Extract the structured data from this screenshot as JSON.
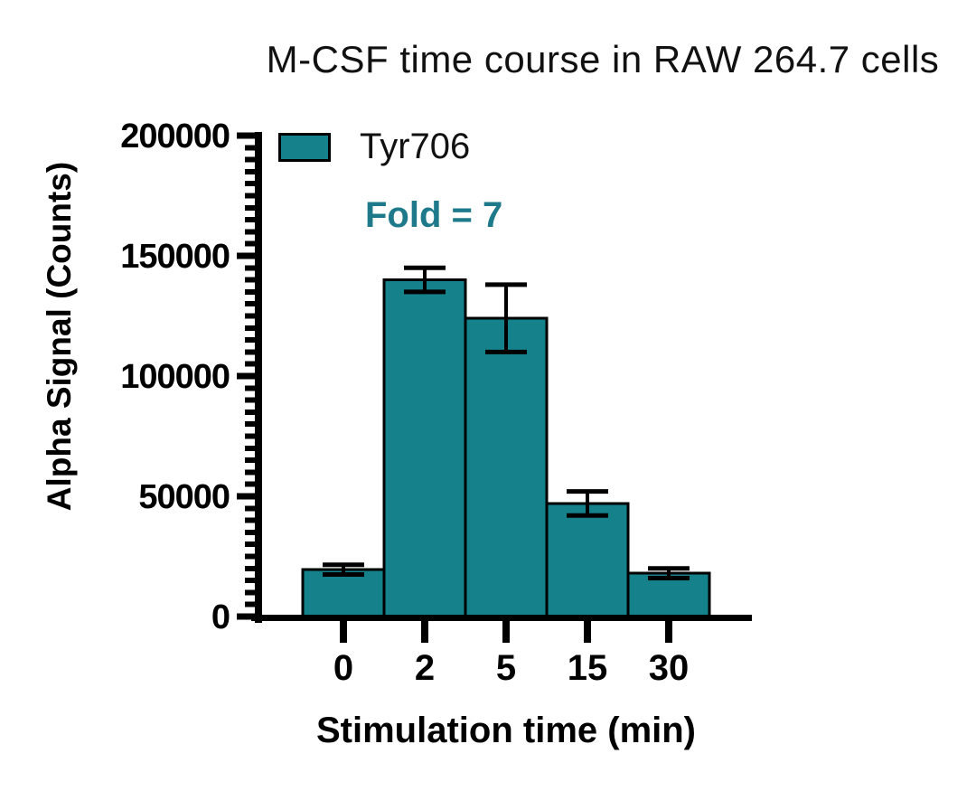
{
  "chart_data": {
    "type": "bar",
    "title": "M-CSF time course in RAW 264.7 cells",
    "xlabel": "Stimulation time (min)",
    "ylabel": "Alpha Signal (Counts)",
    "categories": [
      "0",
      "2",
      "5",
      "15",
      "30"
    ],
    "series": [
      {
        "name": "Tyr706",
        "values": [
          19500,
          140000,
          124000,
          47000,
          18000
        ],
        "errors": [
          2000,
          5000,
          14000,
          5000,
          2000
        ]
      }
    ],
    "ylim": [
      0,
      200000
    ],
    "ytick_interval": 50000,
    "yminor_tick_interval": 5000,
    "ytick_labels": [
      "0",
      "50000",
      "100000",
      "150000",
      "200000"
    ],
    "grid": false,
    "legend_position": "top-left",
    "annotation": {
      "text": "Fold = 7",
      "color": "#1E7A8A"
    },
    "colors": {
      "bar_fill": "#14818B",
      "bar_border": "#000000",
      "axis": "#000000",
      "error_bar": "#000000",
      "text": "#000000"
    }
  }
}
